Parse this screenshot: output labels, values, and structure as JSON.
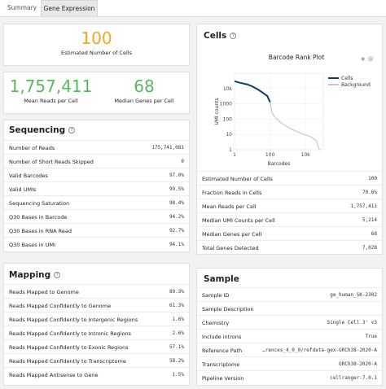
{
  "tabs": [
    "Summary",
    "Gene Expression"
  ],
  "summary": {
    "cells_value": "100",
    "cells_label": "Estimated Number of Cells",
    "reads_value": "1,757,411",
    "reads_label": "Mean Reads per Cell",
    "genes_value": "68",
    "genes_label": "Median Genes per Cell",
    "cells_color": "#f5a623",
    "green_color": "#5cb85c"
  },
  "sequencing": {
    "title": "Sequencing",
    "rows": [
      {
        "k": "Number of Reads",
        "v": "175,741,081"
      },
      {
        "k": "Number of Short Reads Skipped",
        "v": "0"
      },
      {
        "k": "Valid Barcodes",
        "v": "97.0%"
      },
      {
        "k": "Valid UMIs",
        "v": "99.5%"
      },
      {
        "k": "Sequencing Saturation",
        "v": "98.4%"
      },
      {
        "k": "Q30 Bases in Barcode",
        "v": "94.2%"
      },
      {
        "k": "Q30 Bases in RNA Read",
        "v": "92.7%"
      },
      {
        "k": "Q30 Bases in UMI",
        "v": "94.1%"
      }
    ]
  },
  "mapping": {
    "title": "Mapping",
    "rows": [
      {
        "k": "Reads Mapped to Genome",
        "v": "89.3%"
      },
      {
        "k": "Reads Mapped Confidently to Genome",
        "v": "61.3%"
      },
      {
        "k": "Reads Mapped Confidently to Intergenic Regions",
        "v": "1.6%"
      },
      {
        "k": "Reads Mapped Confidently to Intronic Regions",
        "v": "2.6%"
      },
      {
        "k": "Reads Mapped Confidently to Exonic Regions",
        "v": "57.1%"
      },
      {
        "k": "Reads Mapped Confidently to Transcriptome",
        "v": "58.2%"
      },
      {
        "k": "Reads Mapped Antisense to Gene",
        "v": "1.5%"
      }
    ]
  },
  "cells": {
    "title": "Cells",
    "rows": [
      {
        "k": "Estimated Number of Cells",
        "v": "100"
      },
      {
        "k": "Fraction Reads in Cells",
        "v": "70.6%"
      },
      {
        "k": "Mean Reads per Cell",
        "v": "1,757,411"
      },
      {
        "k": "Median UMI Counts per Cell",
        "v": "5,214"
      },
      {
        "k": "Median Genes per Cell",
        "v": "68"
      },
      {
        "k": "Total Genes Detected",
        "v": "7,028"
      }
    ]
  },
  "sample": {
    "title": "Sample",
    "rows": [
      {
        "k": "Sample ID",
        "v": "ge_human_SK-2302"
      },
      {
        "k": "Sample Description",
        "v": ""
      },
      {
        "k": "Chemistry",
        "v": "Single Cell 3' v3"
      },
      {
        "k": "Include introns",
        "v": "True"
      },
      {
        "k": "Reference Path",
        "v": "…rences_4_0_0/refdata-gex-GRCh38-2020-A"
      },
      {
        "k": "Transcriptome",
        "v": "GRCh38-2020-A"
      },
      {
        "k": "Pipeline Version",
        "v": "cellranger-7.0.1"
      }
    ]
  },
  "chart_data": {
    "type": "line",
    "title": "Barcode Rank Plot",
    "xlabel": "Barcodes",
    "ylabel": "UMI counts",
    "x_scale": "log",
    "y_scale": "log",
    "xlim": [
      1,
      100000
    ],
    "ylim": [
      1,
      100000
    ],
    "x_ticks": [
      "1",
      "100",
      "10k"
    ],
    "y_ticks": [
      "1",
      "10",
      "100",
      "1000",
      "10k"
    ],
    "legend_position": "top-right",
    "series": [
      {
        "name": "Cells",
        "color": "#0b3a6e",
        "x": [
          1,
          2,
          5,
          10,
          20,
          40,
          70,
          100
        ],
        "y": [
          30000,
          24000,
          19000,
          14000,
          9000,
          5200,
          3300,
          1300
        ]
      },
      {
        "name": "Background",
        "color": "#c8c8c8",
        "x": [
          100,
          130,
          200,
          400,
          1000,
          3000,
          8000,
          20000,
          40000,
          60000
        ],
        "y": [
          1300,
          260,
          120,
          60,
          30,
          16,
          10,
          7,
          4,
          1
        ]
      }
    ]
  }
}
